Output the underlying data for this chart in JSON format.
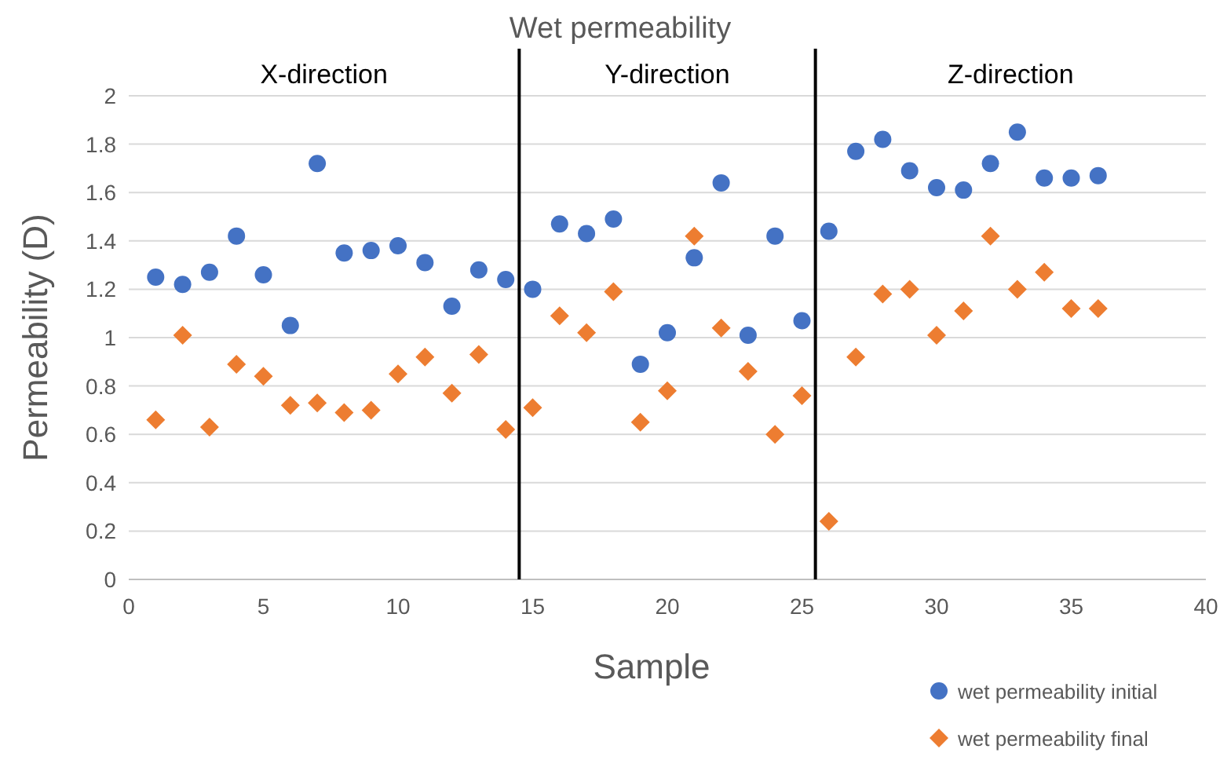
{
  "chart_data": {
    "type": "scatter",
    "title": "Wet permeability",
    "xlabel": "Sample",
    "ylabel": "Permeability (D)",
    "xlim": [
      0,
      40
    ],
    "xticks": [
      0,
      5,
      10,
      15,
      20,
      25,
      30,
      35,
      40
    ],
    "ylim": [
      0,
      2
    ],
    "yticks": [
      0,
      0.2,
      0.4,
      0.6,
      0.8,
      1,
      1.2,
      1.4,
      1.6,
      1.8,
      2
    ],
    "grid": "y",
    "legend": "bottom right",
    "x": [
      1,
      2,
      3,
      4,
      5,
      6,
      7,
      8,
      9,
      10,
      11,
      12,
      13,
      14,
      15,
      16,
      17,
      18,
      19,
      20,
      21,
      22,
      23,
      24,
      25,
      26,
      27,
      28,
      29,
      30,
      31,
      32,
      33,
      34,
      35,
      36
    ],
    "series": [
      {
        "name": "wet permeability initial",
        "color": "#4472c4",
        "marker": "circle",
        "values": [
          1.25,
          1.22,
          1.27,
          1.42,
          1.26,
          1.05,
          1.72,
          1.35,
          1.36,
          1.38,
          1.31,
          1.13,
          1.28,
          1.24,
          1.2,
          1.47,
          1.43,
          1.49,
          0.89,
          1.02,
          1.33,
          1.64,
          1.01,
          1.42,
          1.07,
          1.44,
          1.77,
          1.82,
          1.69,
          1.62,
          1.61,
          1.72,
          1.85,
          1.66,
          1.66,
          1.67
        ]
      },
      {
        "name": "wet permeability final",
        "color": "#ed7d31",
        "marker": "diamond",
        "values": [
          0.66,
          1.01,
          0.63,
          0.89,
          0.84,
          0.72,
          0.73,
          0.69,
          0.7,
          0.85,
          0.92,
          0.77,
          0.93,
          0.62,
          0.71,
          1.09,
          1.02,
          1.19,
          0.65,
          0.78,
          1.42,
          1.04,
          0.86,
          0.6,
          0.76,
          0.24,
          0.92,
          1.18,
          1.2,
          1.01,
          1.11,
          1.42,
          1.2,
          1.27,
          1.12,
          1.12
        ]
      }
    ],
    "ref_lines": [
      {
        "axis": "x",
        "value": 14.5,
        "color": "#000000"
      },
      {
        "axis": "x",
        "value": 25.5,
        "color": "#000000"
      }
    ],
    "annotations": [
      "X-direction",
      "Y-direction",
      "Z-direction"
    ]
  }
}
